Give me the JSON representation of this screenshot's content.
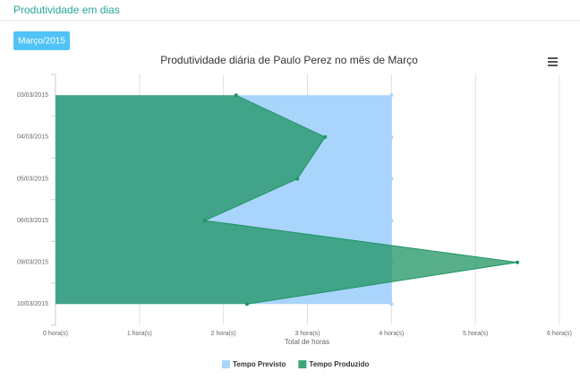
{
  "header": {
    "title": "Produtividade em dias"
  },
  "button": {
    "label": "Março/2015"
  },
  "chart_data": {
    "type": "area",
    "orientation": "horizontal",
    "title": "Produtividade diária de Paulo Perez no mês de Março",
    "x_label": "Total de horas",
    "categories": [
      "03/03/2015",
      "04/03/2015",
      "05/03/2015",
      "06/03/2015",
      "09/03/2015",
      "10/03/2015"
    ],
    "series": [
      {
        "name": "Tempo Previsto",
        "color": "#a9d4fb",
        "values": [
          4,
          4,
          4,
          4,
          4,
          4
        ]
      },
      {
        "name": "Tempo Produzido",
        "color": "#1f9463",
        "values": [
          2.15,
          3.21,
          2.88,
          1.78,
          5.5,
          2.28
        ]
      }
    ],
    "xlim": [
      0,
      6
    ],
    "xticks": [
      {
        "value": 0,
        "label": "0 hora(s)"
      },
      {
        "value": 1,
        "label": "1 hora(s)"
      },
      {
        "value": 2,
        "label": "2 hora(s)"
      },
      {
        "value": 3,
        "label": "3 hora(s)"
      },
      {
        "value": 4,
        "label": "4 hora(s)"
      },
      {
        "value": 5,
        "label": "5 hora(s)"
      },
      {
        "value": 6,
        "label": "6 hora(s)"
      }
    ],
    "grid": true,
    "legend": "bottom"
  }
}
